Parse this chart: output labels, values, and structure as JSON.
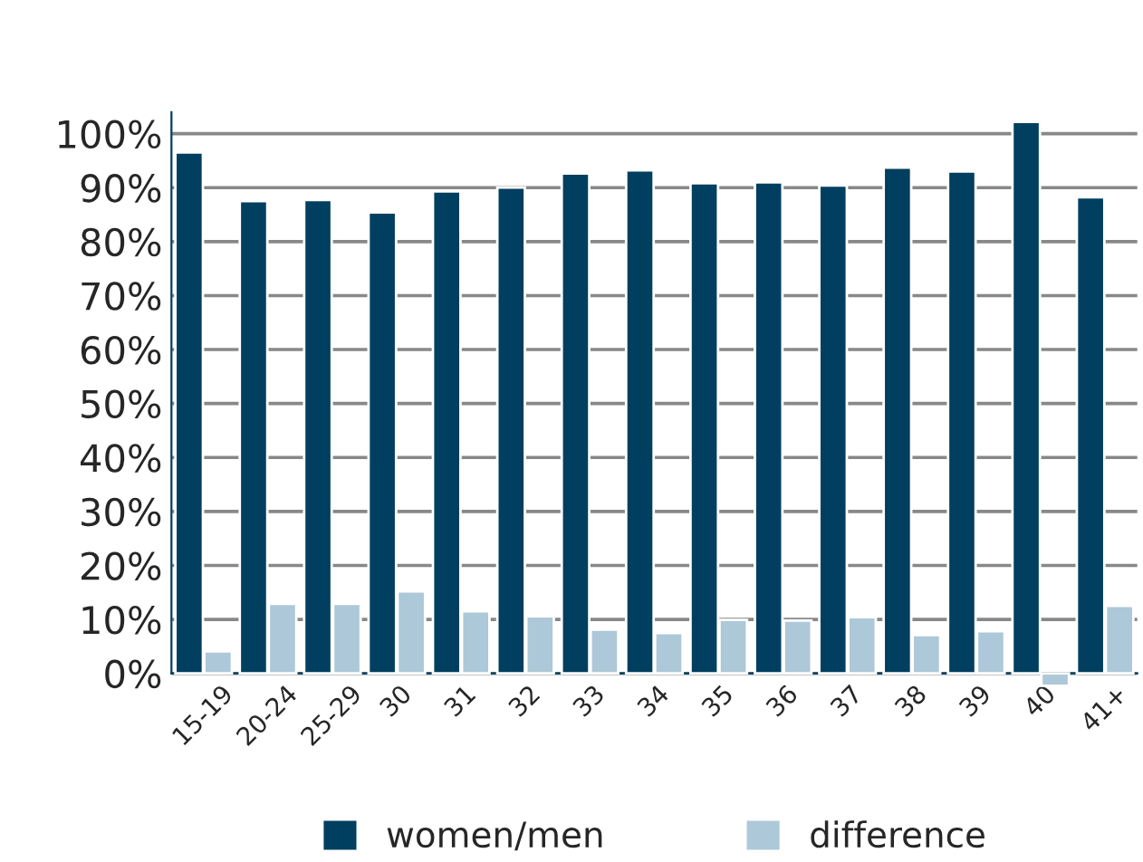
{
  "chart_data": {
    "type": "bar",
    "categories": [
      "15-19",
      "20-24",
      "25-29",
      "30",
      "31",
      "32",
      "33",
      "34",
      "35",
      "36",
      "37",
      "38",
      "39",
      "40",
      "41+"
    ],
    "series": [
      {
        "name": "women/men",
        "color": "#003f5f",
        "values": [
          96.5,
          87.5,
          87.7,
          85.4,
          89.3,
          90.0,
          92.6,
          93.2,
          90.8,
          91.0,
          90.4,
          93.7,
          93.0,
          102.2,
          88.2
        ]
      },
      {
        "name": "difference",
        "color": "#adc8d8",
        "values": [
          4.1,
          12.9,
          12.9,
          15.2,
          11.5,
          10.6,
          8.1,
          7.5,
          9.9,
          9.8,
          10.4,
          7.1,
          7.8,
          -2.3,
          12.5
        ]
      }
    ],
    "ylim": [
      -3,
      104
    ],
    "yticks": [
      {
        "value": 0,
        "label": "0%"
      },
      {
        "value": 10,
        "label": "10%"
      },
      {
        "value": 20,
        "label": "20%"
      },
      {
        "value": 30,
        "label": "30%"
      },
      {
        "value": 40,
        "label": "40%"
      },
      {
        "value": 50,
        "label": "50%"
      },
      {
        "value": 60,
        "label": "60%"
      },
      {
        "value": 70,
        "label": "70%"
      },
      {
        "value": 80,
        "label": "80%"
      },
      {
        "value": 90,
        "label": "90%"
      },
      {
        "value": 100,
        "label": "100%"
      }
    ],
    "grid": "y",
    "legend": "bottom"
  }
}
